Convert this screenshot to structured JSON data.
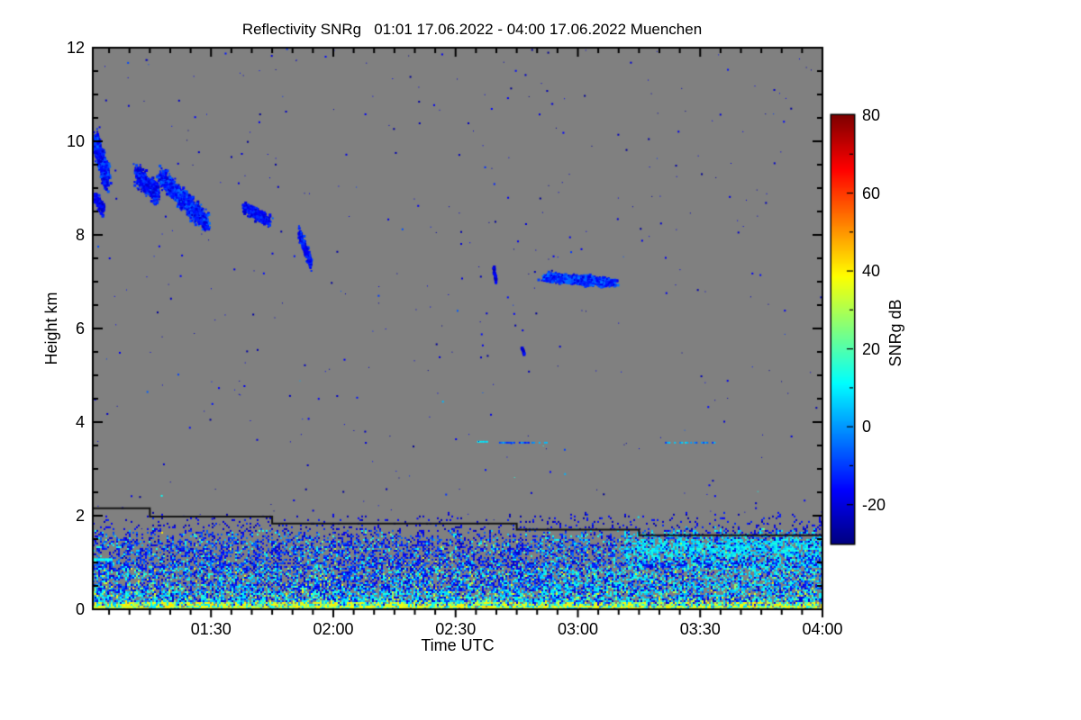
{
  "title": "Reflectivity SNRg   01:01 17.06.2022 - 04:00 17.06.2022 Muenchen",
  "chart_data": {
    "type": "heatmap",
    "title": "Reflectivity SNRg   01:01 17.06.2022 - 04:00 17.06.2022 Muenchen",
    "variable": "Reflectivity SNRg",
    "site": "Muenchen",
    "time_start": "01:01 17.06.2022",
    "time_end": "04:00 17.06.2022",
    "background_color": "#808080",
    "x_range_minutes": [
      61,
      240
    ],
    "y_range_km": [
      0,
      12
    ],
    "colorbar_range_db": [
      -30,
      80
    ],
    "axes": {
      "x": {
        "title": "Time UTC",
        "minor_step_min": 5,
        "ticks": [
          {
            "label": "01:30",
            "min": 90
          },
          {
            "label": "02:00",
            "min": 120
          },
          {
            "label": "02:30",
            "min": 150
          },
          {
            "label": "03:00",
            "min": 180
          },
          {
            "label": "03:30",
            "min": 210
          },
          {
            "label": "04:00",
            "min": 240
          }
        ]
      },
      "y": {
        "title": "Height km",
        "minor_step_km": 0.5,
        "ticks": [
          {
            "label": "0",
            "km": 0
          },
          {
            "label": "2",
            "km": 2
          },
          {
            "label": "4",
            "km": 4
          },
          {
            "label": "6",
            "km": 6
          },
          {
            "label": "8",
            "km": 8
          },
          {
            "label": "10",
            "km": 10
          },
          {
            "label": "12",
            "km": 12
          }
        ]
      },
      "colorbar": {
        "title": "SNRg dB",
        "minor_step_db": 10,
        "ticks": [
          {
            "label": "80",
            "db": 80
          },
          {
            "label": "60",
            "db": 60
          },
          {
            "label": "40",
            "db": 40
          },
          {
            "label": "20",
            "db": 20
          },
          {
            "label": "0",
            "db": 0
          },
          {
            "label": "-20",
            "db": -20
          }
        ]
      }
    },
    "features": {
      "step_line": {
        "color": "#141414",
        "points_min_km": [
          [
            61,
            2.16
          ],
          [
            75,
            2.16
          ],
          [
            75,
            1.98
          ],
          [
            105,
            1.98
          ],
          [
            105,
            1.83
          ],
          [
            165,
            1.83
          ],
          [
            165,
            1.7
          ],
          [
            195,
            1.7
          ],
          [
            195,
            1.58
          ],
          [
            240,
            1.58
          ]
        ]
      },
      "clouds": [
        {
          "id": "cloud-0101-10km",
          "t0": 61.5,
          "t1": 64.5,
          "h0": 10.0,
          "h1": 9.2,
          "sd_t": 1.0,
          "sd_h": 0.38,
          "n": 850,
          "snr_min": -22,
          "snr_max": -5
        },
        {
          "id": "cloud-0101-tail",
          "t0": 61.5,
          "t1": 63.5,
          "h0": 8.8,
          "h1": 8.55,
          "sd_t": 0.7,
          "sd_h": 0.18,
          "n": 130,
          "snr_min": -24,
          "snr_max": -11
        },
        {
          "id": "cloud-0113",
          "t0": 71.5,
          "t1": 77.0,
          "h0": 9.3,
          "h1": 8.85,
          "sd_t": 1.0,
          "sd_h": 0.33,
          "n": 450,
          "snr_min": -23,
          "snr_max": -7
        },
        {
          "id": "cloud-0118",
          "t0": 77.5,
          "t1": 89.0,
          "h0": 9.25,
          "h1": 8.25,
          "sd_t": 1.2,
          "sd_h": 0.3,
          "n": 1000,
          "snr_min": -22,
          "snr_max": -4
        },
        {
          "id": "cloud-0138",
          "t0": 98.0,
          "t1": 104.5,
          "h0": 8.6,
          "h1": 8.3,
          "sd_t": 0.8,
          "sd_h": 0.18,
          "n": 260,
          "snr_min": -23,
          "snr_max": -9
        },
        {
          "id": "cloud-0152",
          "t0": 111.5,
          "t1": 114.5,
          "h0": 8.05,
          "h1": 7.4,
          "sd_t": 0.4,
          "sd_h": 0.22,
          "n": 230,
          "snr_min": -22,
          "snr_max": -8
        },
        {
          "id": "cloud-0240",
          "t0": 159.3,
          "t1": 159.9,
          "h0": 7.3,
          "h1": 7.0,
          "sd_t": 0.15,
          "sd_h": 0.1,
          "n": 45,
          "snr_min": -24,
          "snr_max": -12
        },
        {
          "id": "cloud-0253",
          "t0": 172.0,
          "t1": 188.5,
          "h0": 7.1,
          "h1": 6.98,
          "sd_t": 2.3,
          "sd_h": 0.14,
          "n": 950,
          "snr_min": -20,
          "snr_max": -3
        },
        {
          "id": "cloud-dot-0247",
          "t0": 166.2,
          "t1": 166.8,
          "h0": 5.58,
          "h1": 5.46,
          "sd_t": 0.12,
          "sd_h": 0.06,
          "n": 16,
          "snr_min": -24,
          "snr_max": -14
        }
      ],
      "layer_streaks": [
        {
          "t0": 155.3,
          "t1": 157.6,
          "h_km": 3.58,
          "thick": 2,
          "coverage": 0.95,
          "snr_min": 5,
          "snr_max": 13
        },
        {
          "t0": 160.2,
          "t1": 172.2,
          "h_km": 3.56,
          "thick": 2,
          "coverage": 0.72,
          "snr_min": -14,
          "snr_max": 5
        },
        {
          "t0": 200.5,
          "t1": 214.0,
          "h_km": 3.56,
          "thick": 2,
          "coverage": 0.6,
          "snr_min": -12,
          "snr_max": 9
        },
        {
          "t0": 61.0,
          "t1": 65.8,
          "h_km": 1.07,
          "thick": 3,
          "coverage": 1.0,
          "snr_min": 7,
          "snr_max": 14
        }
      ],
      "boundary_layer": {
        "top_km": 1.64,
        "top_jitter_km": 0.12,
        "cyan_enhance_from_min": 171,
        "right_enhance_from_min": 191,
        "cyan_band_h_km": [
          1.12,
          1.5
        ],
        "yellow_band_top_km": 0.15
      },
      "noise": {
        "count": 430
      }
    }
  }
}
